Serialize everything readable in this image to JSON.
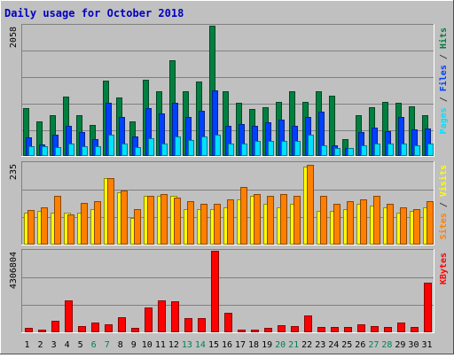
{
  "chart_data": {
    "type": "bar",
    "title": "Daily usage for October 2018",
    "categories": [
      "1",
      "2",
      "3",
      "4",
      "5",
      "6",
      "7",
      "8",
      "9",
      "10",
      "11",
      "12",
      "13",
      "14",
      "15",
      "16",
      "17",
      "18",
      "19",
      "20",
      "21",
      "22",
      "23",
      "24",
      "25",
      "26",
      "27",
      "28",
      "29",
      "30",
      "31"
    ],
    "weekend_days": [
      "6",
      "7",
      "13",
      "14",
      "20",
      "21",
      "27",
      "28"
    ],
    "panels": [
      {
        "name": "hits-files-pages",
        "ymax_label": "2058",
        "ymax": 2058,
        "legend": [
          {
            "text": "Pages",
            "color": "#00e0ff"
          },
          {
            "text": "Files",
            "color": "#0040ff"
          },
          {
            "text": "Hits",
            "color": "#008040"
          }
        ],
        "series": [
          {
            "name": "Hits",
            "color": "#008040",
            "values": [
              745,
              540,
              640,
              925,
              640,
              475,
              1180,
              915,
              540,
              1200,
              1010,
              1510,
              1010,
              1170,
              2058,
              1010,
              830,
              730,
              760,
              840,
              1010,
              850,
              1010,
              940,
              260,
              640,
              760,
              840,
              825,
              775,
              640
            ]
          },
          {
            "name": "Files",
            "color": "#0040ff",
            "values": [
              275,
              175,
              330,
              470,
              370,
              250,
              825,
              605,
              300,
              745,
              660,
              825,
              610,
              710,
              1030,
              470,
              490,
              470,
              520,
              570,
              470,
              610,
              690,
              160,
              110,
              370,
              440,
              385,
              610,
              410,
              420
            ]
          },
          {
            "name": "Pages",
            "color": "#00e0ff",
            "values": [
              145,
              145,
              130,
              185,
              145,
              145,
              320,
              185,
              130,
              265,
              185,
              300,
              245,
              300,
              320,
              185,
              185,
              225,
              225,
              225,
              225,
              330,
              150,
              115,
              110,
              150,
              185,
              185,
              185,
              150,
              180
            ]
          }
        ]
      },
      {
        "name": "visits-sites",
        "ymax_label": "235",
        "ymax": 235,
        "legend": [
          {
            "text": "Sites",
            "color": "#ff8000"
          },
          {
            "text": "/",
            "color": "#404040"
          },
          {
            "text": "Visits",
            "color": "#ffff00"
          }
        ],
        "series": [
          {
            "name": "Visits",
            "color": "#ffff00",
            "values": [
              90,
              95,
              90,
              90,
              90,
              100,
              190,
              150,
              75,
              140,
              140,
              140,
              100,
              100,
              100,
              105,
              130,
              140,
              115,
              105,
              115,
              225,
              95,
              95,
              100,
              115,
              110,
              105,
              90,
              95,
              105
            ]
          },
          {
            "name": "Sites",
            "color": "#ff8000",
            "values": [
              98,
              105,
              140,
              85,
              120,
              125,
              190,
              155,
              100,
              140,
              145,
              135,
              125,
              115,
              115,
              130,
              165,
              145,
              140,
              145,
              140,
              230,
              140,
              115,
              125,
              130,
              140,
              115,
              105,
              100,
              125
            ]
          }
        ]
      },
      {
        "name": "kbytes",
        "ymax_label": "4306804",
        "ymax": 4306804,
        "legend": [
          {
            "text": "KBytes",
            "color": "#ff0000"
          }
        ],
        "series": [
          {
            "name": "KBytes",
            "color": "#ff0000",
            "values": [
              210000,
              85000,
              590000,
              1640000,
              280000,
              490000,
              390000,
              760000,
              170000,
              1280000,
              1650000,
              1610000,
              690000,
              730000,
              4306804,
              1010000,
              90000,
              90000,
              170000,
              310000,
              270000,
              850000,
              235000,
              255000,
              240000,
              390000,
              290000,
              255000,
              480000,
              240000,
              2600000
            ]
          }
        ]
      }
    ]
  }
}
